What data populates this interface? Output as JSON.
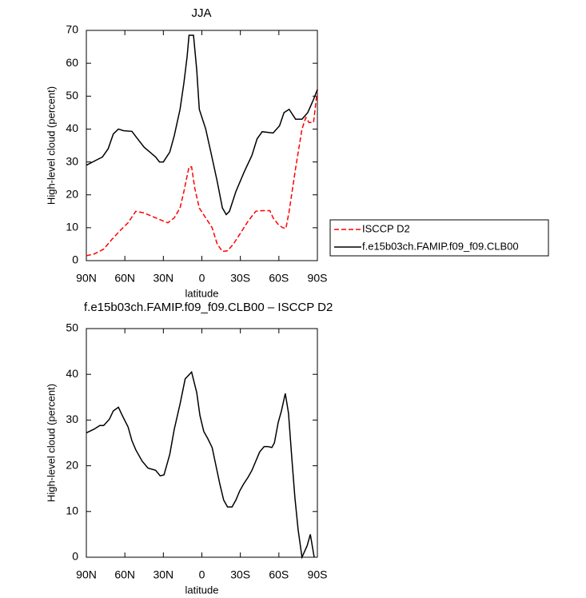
{
  "chart_data": [
    {
      "type": "line",
      "title": "JJA",
      "x_label": "latitude",
      "y_label": "High-level cloud (percent)",
      "xlim": [
        90,
        -90
      ],
      "xticks": [
        {
          "value": 90,
          "label": "90N"
        },
        {
          "value": 60,
          "label": "60N"
        },
        {
          "value": 30,
          "label": "30N"
        },
        0,
        {
          "value": -30,
          "label": "30S"
        },
        {
          "value": -60,
          "label": "60S"
        },
        {
          "value": -90,
          "label": "90S"
        }
      ],
      "ylim": [
        0,
        70
      ],
      "yticks": [
        0,
        10,
        20,
        30,
        40,
        50,
        60,
        70
      ],
      "legend": "right",
      "series": [
        {
          "name": "ISCCP D2",
          "color": "#ff0000",
          "style": "dashed",
          "x": [
            90,
            84,
            76.5,
            70,
            64,
            57.5,
            51.5,
            45,
            39,
            33,
            26.5,
            21.5,
            17,
            14,
            10,
            8,
            5.5,
            2,
            -3,
            -8,
            -12,
            -16,
            -20,
            -24.5,
            -29.5,
            -36,
            -42,
            -47,
            -53,
            -55.5,
            -59.5,
            -63,
            -65.5,
            -68,
            -73,
            -78,
            -81,
            -83.5,
            -87,
            -90
          ],
          "values": [
            1.5,
            2,
            3.5,
            6.5,
            9,
            11.5,
            15,
            14.5,
            13.5,
            12.5,
            11.5,
            13,
            16,
            21,
            28.5,
            28.5,
            22,
            16,
            13,
            10,
            5,
            2.8,
            3,
            5,
            8,
            12,
            15,
            15.2,
            15.2,
            13,
            11,
            10,
            9.8,
            15,
            28,
            40,
            43.5,
            42,
            42,
            52
          ]
        },
        {
          "name": "f.e15b03ch.FAMIP.f09_f09.CLB00",
          "color": "#000000",
          "style": "solid",
          "x": [
            90,
            82.5,
            77.5,
            73,
            69,
            65,
            61,
            54.5,
            50,
            45,
            39,
            36,
            33,
            30,
            25,
            21.5,
            17,
            14,
            11.5,
            10,
            6.5,
            4,
            2,
            -3,
            -7,
            -12,
            -16,
            -19,
            -21.5,
            -26.5,
            -33,
            -39,
            -43,
            -47,
            -51,
            -55.5,
            -60.5,
            -64,
            -68,
            -73,
            -78,
            -82.5,
            -87,
            -90
          ],
          "values": [
            29,
            30.5,
            31.5,
            34,
            38.5,
            40,
            39.5,
            39.3,
            37,
            34.5,
            32.5,
            31.5,
            30,
            30,
            33,
            38,
            46,
            54,
            62,
            68.5,
            68.5,
            58,
            46,
            40,
            33,
            24,
            16,
            14,
            15,
            21,
            27,
            32,
            37,
            39.2,
            39,
            38.8,
            41,
            45,
            46,
            43,
            43,
            45,
            49,
            52
          ]
        }
      ]
    },
    {
      "type": "line",
      "title": "f.e15b03ch.FAMIP.f09_f09.CLB00 – ISCCP D2",
      "x_label": "latitude",
      "y_label": "High-level cloud (percent)",
      "xlim": [
        90,
        -90
      ],
      "xticks": [
        {
          "value": 90,
          "label": "90N"
        },
        {
          "value": 60,
          "label": "60N"
        },
        {
          "value": 30,
          "label": "30N"
        },
        0,
        {
          "value": -30,
          "label": "30S"
        },
        {
          "value": -60,
          "label": "60S"
        },
        {
          "value": -90,
          "label": "90S"
        }
      ],
      "ylim": [
        0,
        50
      ],
      "yticks": [
        0,
        10,
        20,
        30,
        40,
        50
      ],
      "color": "#000000",
      "x": [
        90,
        84,
        79.5,
        76.5,
        72,
        69,
        65,
        62,
        57.5,
        54.5,
        51.5,
        46.5,
        42,
        36,
        32.5,
        29.5,
        25,
        21.5,
        17,
        13,
        8,
        4,
        1.5,
        -1.5,
        -4.5,
        -8,
        -11,
        -14,
        -17,
        -20,
        -23.5,
        -26.5,
        -29.5,
        -32.5,
        -36,
        -39,
        -42,
        -45,
        -48.5,
        -51.5,
        -54.5,
        -56.5,
        -59.5,
        -62,
        -65,
        -67.5,
        -70,
        -72.5,
        -75,
        -78,
        -82,
        -84.5,
        -87.5
      ],
      "values": [
        27.2,
        28,
        28.8,
        28.8,
        30.2,
        32,
        32.8,
        31,
        28.5,
        25.5,
        23.5,
        21,
        19.5,
        19,
        17.8,
        18,
        22.5,
        28,
        33.5,
        39,
        40.5,
        36,
        31,
        27.5,
        26,
        24,
        20,
        16,
        12.5,
        11,
        11,
        12.5,
        14.5,
        16,
        17.5,
        19,
        21,
        23,
        24.2,
        24.2,
        24,
        25,
        29.5,
        32,
        35.8,
        31.5,
        22,
        13,
        6,
        0,
        2.5,
        5,
        0
      ]
    }
  ]
}
